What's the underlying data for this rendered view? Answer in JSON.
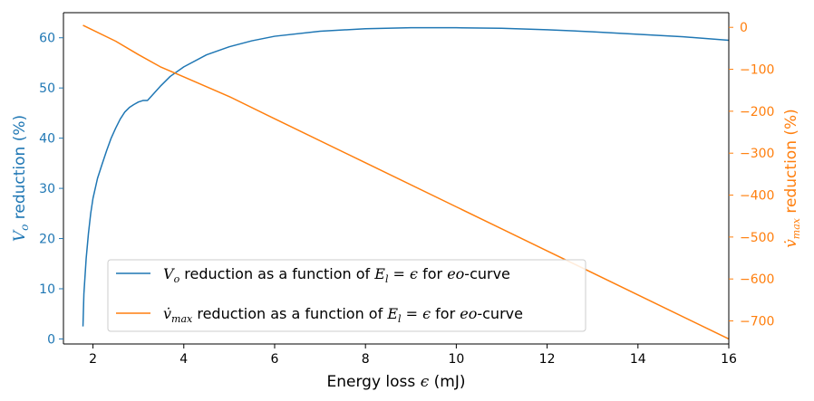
{
  "chart_data": {
    "type": "line",
    "x_axis": {
      "label_text": "Energy loss ",
      "label_symbol": "ϵ",
      "label_unit": " (mJ)",
      "lim": [
        1.35,
        16
      ],
      "ticks": [
        2,
        4,
        6,
        8,
        10,
        12,
        14,
        16
      ],
      "tick_labels": [
        "2",
        "4",
        "6",
        "8",
        "10",
        "12",
        "14",
        "16"
      ]
    },
    "y_left": {
      "label_symbol": "V",
      "label_sub": "o",
      "label_text": " reduction (%)",
      "lim": [
        -1.0,
        65.0
      ],
      "ticks": [
        0,
        10,
        20,
        30,
        40,
        50,
        60
      ],
      "tick_labels": [
        "0",
        "10",
        "20",
        "30",
        "40",
        "50",
        "60"
      ],
      "color": "#1f77b4"
    },
    "y_right": {
      "label_symbol": "v̇",
      "label_sub": "max",
      "label_text": " reduction (%)",
      "lim": [
        -755,
        35
      ],
      "ticks": [
        0,
        -100,
        -200,
        -300,
        -400,
        -500,
        -600,
        -700
      ],
      "tick_labels": [
        "0",
        "−100",
        "−200",
        "−300",
        "−400",
        "−500",
        "−600",
        "−700"
      ],
      "color": "#ff7f0e"
    },
    "grid": false,
    "legend_position": "lower-left",
    "series": [
      {
        "name_symbol": "V",
        "name_sub": "o",
        "name_mid": " reduction as a function of ",
        "name_math": "E",
        "name_math_sub": "l",
        "name_eq": " = ϵ",
        "name_for": " for ",
        "name_curve": "eo",
        "name_end": "-curve",
        "axis": "left",
        "color": "#1f77b4",
        "x": [
          1.78,
          1.8,
          1.85,
          1.9,
          1.95,
          2.0,
          2.1,
          2.2,
          2.3,
          2.4,
          2.5,
          2.6,
          2.7,
          2.8,
          2.9,
          3.0,
          3.1,
          3.2,
          3.3,
          3.5,
          3.7,
          4.0,
          4.5,
          5.0,
          5.5,
          6.0,
          7.0,
          8.0,
          9.0,
          10.0,
          11.0,
          12.0,
          13.0,
          14.0,
          15.0,
          16.0
        ],
        "y": [
          2.5,
          9,
          16,
          21,
          25,
          28,
          32,
          34.8,
          37.5,
          40,
          42,
          43.8,
          45.2,
          46.1,
          46.7,
          47.2,
          47.5,
          47.5,
          48.5,
          50.5,
          52.3,
          54.2,
          56.6,
          58.2,
          59.4,
          60.3,
          61.3,
          61.8,
          62.0,
          62.0,
          61.9,
          61.6,
          61.2,
          60.7,
          60.2,
          59.5
        ]
      },
      {
        "name_symbol": "v̇",
        "name_sub": "max",
        "name_mid": " reduction as a function of ",
        "name_math": "E",
        "name_math_sub": "l",
        "name_eq": " = ϵ",
        "name_for": " for ",
        "name_curve": "eo",
        "name_end": "-curve",
        "axis": "right",
        "color": "#ff7f0e",
        "x": [
          1.78,
          2.5,
          3.0,
          3.5,
          4.0,
          5.0,
          6.0,
          8.0,
          10.0,
          12.0,
          14.0,
          16.0
        ],
        "y": [
          5,
          -33,
          -65,
          -95,
          -118,
          -165,
          -218,
          -323,
          -428,
          -533,
          -638,
          -743
        ]
      }
    ]
  }
}
